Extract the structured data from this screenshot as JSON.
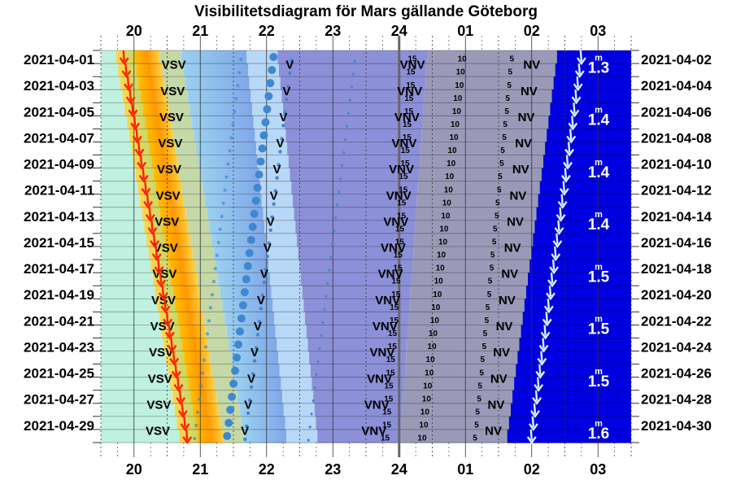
{
  "title": "Visibilitetsdiagram för Mars gällande Göteborg",
  "chart_data": {
    "type": "visibility-diagram",
    "hour_labels": [
      "20",
      "21",
      "22",
      "23",
      "24",
      "01",
      "02",
      "03"
    ],
    "x_range_hours": [
      19.5,
      27.5
    ],
    "left_dates": [
      "2021-04-01",
      "2021-04-03",
      "2021-04-05",
      "2021-04-07",
      "2021-04-09",
      "2021-04-11",
      "2021-04-13",
      "2021-04-15",
      "2021-04-17",
      "2021-04-19",
      "2021-04-21",
      "2021-04-23",
      "2021-04-25",
      "2021-04-27",
      "2021-04-29"
    ],
    "right_dates": [
      "2021-04-02",
      "2021-04-04",
      "2021-04-06",
      "2021-04-08",
      "2021-04-10",
      "2021-04-12",
      "2021-04-14",
      "2021-04-16",
      "2021-04-18",
      "2021-04-20",
      "2021-04-22",
      "2021-04-24",
      "2021-04-26",
      "2021-04-28",
      "2021-04-30"
    ],
    "sunset_hour": [
      20.0,
      20.95
    ],
    "mars_set_hour": [
      26.75,
      26.0
    ],
    "twilight_end_hour": [
      21.7,
      22.3
    ],
    "dawn_start_hour": [
      27.0,
      25.9
    ],
    "direction_labels": [
      "VSV",
      "V",
      "VNV",
      "NV"
    ],
    "direction_hours": {
      "VSV": [
        20.6,
        20.35
      ],
      "V": [
        22.35,
        21.65
      ],
      "VNV": [
        24.2,
        23.6
      ],
      "NV": [
        26.0,
        25.4
      ]
    },
    "altitude_labels": [
      "15",
      "10",
      "5"
    ],
    "altitude_hours": {
      "15": [
        24.2,
        23.8
      ],
      "10": [
        24.95,
        24.35
      ],
      "5": [
        25.7,
        25.15
      ]
    },
    "magnitudes": [
      "1.3",
      "1.4",
      "1.4",
      "1.4",
      "1.5",
      "1.5",
      "1.5",
      "1.6"
    ],
    "magnitude_unit": "m",
    "colors": {
      "day": "#bff0e0",
      "sunset_arrow": "#ff2200",
      "mars_set_arrow": "#d8f0ff",
      "twilight_light": "#b8d8f8",
      "twilight_mid": "#7fa8e8",
      "plot_period": "#8c90d8",
      "altitude_band": "#9a9ab8",
      "night": "#0000e0",
      "dots": "#3f88d0",
      "midnight_line": "#666666"
    }
  }
}
